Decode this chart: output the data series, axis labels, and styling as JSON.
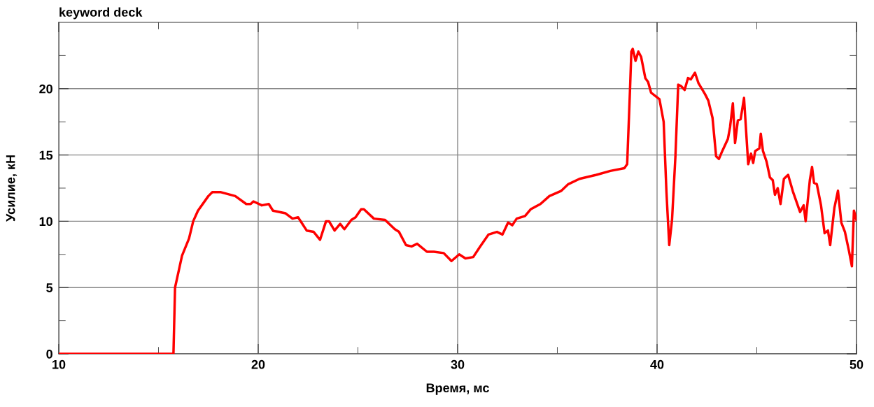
{
  "chart_data": {
    "type": "line",
    "title": "keyword deck",
    "xlabel": "Время, мс",
    "ylabel": "Усилие, кН",
    "xlim": [
      10,
      50
    ],
    "ylim": [
      0,
      25
    ],
    "xticks": [
      10,
      {
        "value": 15,
        "label": null
      },
      20,
      {
        "value": 25,
        "label": null
      },
      30,
      {
        "value": 35,
        "label": null
      },
      40,
      {
        "value": 45,
        "label": null
      },
      50
    ],
    "yticks": [
      0,
      {
        "value": 2.5,
        "label": null
      },
      5,
      {
        "value": 7.5,
        "label": null
      },
      10,
      {
        "value": 12.5,
        "label": null
      },
      15,
      {
        "value": 17.5,
        "label": null
      },
      20,
      {
        "value": 22.5,
        "label": null
      }
    ],
    "grid": true,
    "legend": false,
    "marker": "none",
    "line_style": "solid",
    "series": [
      {
        "color": "#ff0000",
        "x": [
          10,
          15.75,
          15.83,
          16.18,
          16.53,
          16.74,
          16.98,
          17.5,
          17.7,
          18.1,
          18.85,
          19.4,
          19.62,
          19.76,
          20.18,
          20.53,
          20.74,
          21.37,
          21.72,
          22.0,
          22.43,
          22.78,
          23.1,
          23.4,
          23.55,
          23.83,
          24.11,
          24.32,
          24.67,
          24.88,
          25.16,
          25.3,
          25.8,
          26.36,
          26.85,
          27.06,
          27.41,
          27.69,
          27.97,
          28.46,
          28.81,
          29.3,
          29.69,
          30.08,
          30.39,
          30.78,
          31.13,
          31.55,
          31.97,
          32.25,
          32.53,
          32.74,
          32.96,
          33.38,
          33.66,
          34.15,
          34.6,
          35.2,
          35.55,
          36.11,
          36.96,
          37.66,
          38.36,
          38.5,
          38.64,
          38.71,
          38.78,
          38.92,
          39.06,
          39.2,
          39.41,
          39.55,
          39.7,
          40.12,
          40.33,
          40.47,
          40.61,
          40.75,
          40.92,
          41.06,
          41.2,
          41.38,
          41.55,
          41.69,
          41.9,
          42.08,
          42.4,
          42.57,
          42.78,
          42.96,
          43.1,
          43.27,
          43.55,
          43.66,
          43.8,
          43.91,
          44.05,
          44.19,
          44.36,
          44.57,
          44.71,
          44.82,
          44.92,
          45.13,
          45.2,
          45.31,
          45.49,
          45.66,
          45.8,
          45.91,
          46.05,
          46.19,
          46.36,
          46.57,
          46.82,
          47.17,
          47.35,
          47.45,
          47.66,
          47.77,
          47.87,
          48.01,
          48.22,
          48.4,
          48.57,
          48.68,
          48.89,
          49.07,
          49.24,
          49.42,
          49.63,
          49.77,
          49.87,
          50.0
        ],
        "values": [
          0,
          0,
          5.0,
          7.4,
          8.7,
          10.0,
          10.8,
          11.9,
          12.2,
          12.2,
          11.9,
          11.3,
          11.3,
          11.5,
          11.2,
          11.3,
          10.8,
          10.6,
          10.2,
          10.3,
          9.3,
          9.2,
          8.6,
          10.0,
          10.0,
          9.3,
          9.8,
          9.4,
          10.1,
          10.3,
          10.9,
          10.9,
          10.2,
          10.1,
          9.4,
          9.2,
          8.2,
          8.1,
          8.3,
          7.7,
          7.7,
          7.6,
          7.0,
          7.5,
          7.2,
          7.3,
          8.1,
          9.0,
          9.2,
          9.0,
          9.9,
          9.7,
          10.2,
          10.4,
          10.9,
          11.3,
          11.9,
          12.3,
          12.8,
          13.2,
          13.5,
          13.8,
          14.0,
          14.3,
          19.8,
          22.8,
          23.0,
          22.1,
          22.8,
          22.4,
          20.8,
          20.5,
          19.7,
          19.2,
          17.5,
          12.2,
          8.2,
          10.1,
          14.9,
          20.3,
          20.2,
          19.9,
          20.8,
          20.7,
          21.2,
          20.4,
          19.6,
          19.1,
          17.8,
          14.9,
          14.7,
          15.3,
          16.2,
          17.1,
          18.9,
          15.9,
          17.6,
          17.7,
          19.3,
          14.3,
          15.1,
          14.4,
          15.3,
          15.5,
          16.6,
          15.3,
          14.5,
          13.3,
          13.1,
          12.0,
          12.5,
          11.3,
          13.2,
          13.5,
          12.2,
          10.7,
          11.2,
          10.0,
          13.1,
          14.1,
          12.9,
          12.8,
          11.2,
          9.1,
          9.3,
          8.2,
          11.0,
          12.3,
          9.9,
          9.2,
          7.7,
          6.6,
          10.8,
          10.1
        ]
      }
    ]
  }
}
